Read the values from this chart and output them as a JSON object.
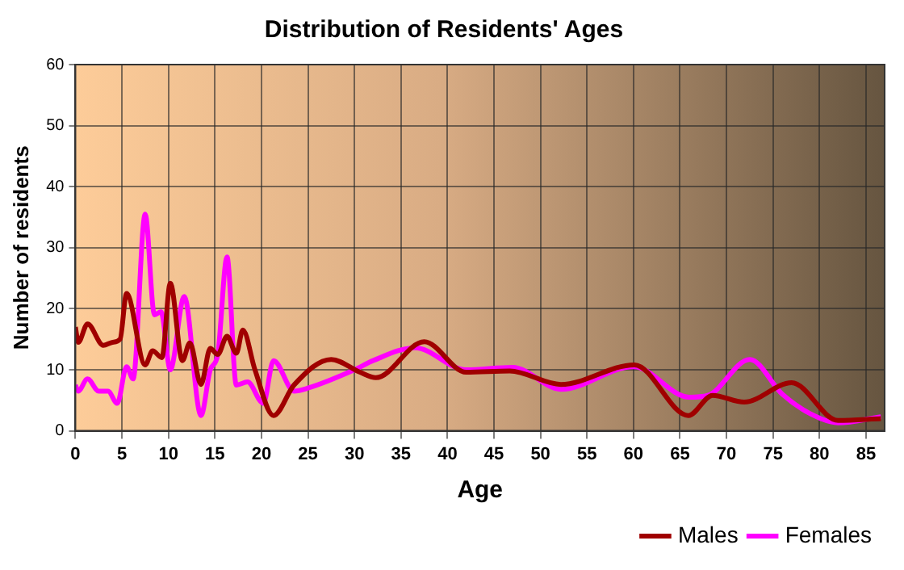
{
  "chart_data": {
    "type": "line",
    "title": "Distribution of Residents' Ages",
    "xlabel": "Age",
    "ylabel": "Number of residents",
    "xlim": [
      0,
      87
    ],
    "xticks": [
      0,
      5,
      10,
      15,
      20,
      25,
      30,
      35,
      40,
      45,
      50,
      55,
      60,
      65,
      70,
      75,
      80,
      85
    ],
    "ylim": [
      0,
      60
    ],
    "yticks": [
      0,
      10,
      20,
      30,
      40,
      50,
      60
    ],
    "grid": true,
    "legend": "bottom right",
    "marker": "none",
    "line_style": "solid",
    "series": [
      {
        "name": "Males",
        "color": "#a00000",
        "x": [
          0,
          0.3,
          1.3,
          3,
          4,
          4.8,
          5.5,
          7.5,
          8.3,
          9.3,
          10.2,
          11.5,
          12.3,
          13.5,
          14.5,
          15.3,
          16.3,
          17.3,
          18,
          19.3,
          21.3,
          23.5,
          27.5,
          30.6,
          32.3,
          37.5,
          42,
          46.7,
          52.2,
          60.1,
          65.9,
          68.5,
          71.9,
          77,
          82,
          86.6
        ],
        "values": [
          17,
          14.5,
          17.5,
          14,
          14.5,
          15,
          22.5,
          10.8,
          13.1,
          12,
          24.2,
          11.5,
          14.4,
          7.6,
          13.5,
          12.5,
          15.5,
          12.7,
          16.5,
          10,
          2.5,
          7.5,
          11.7,
          9.6,
          8.7,
          14.6,
          9.6,
          9.8,
          7.6,
          10.8,
          2.5,
          5.8,
          4.7,
          7.9,
          1.7,
          2
        ]
      },
      {
        "name": "Females",
        "color": "#ff00ff",
        "x": [
          0,
          0.3,
          1.3,
          2.5,
          3.5,
          4.5,
          5.5,
          6.2,
          7.5,
          8.5,
          9.2,
          10.2,
          11.7,
          13.5,
          14.5,
          15.3,
          16.3,
          17.3,
          18.5,
          20.2,
          21.3,
          23.5,
          25,
          30,
          32,
          36.5,
          42,
          47,
          52.2,
          60,
          66,
          68,
          72.5,
          76,
          79,
          82,
          86.6
        ],
        "values": [
          7.5,
          6.5,
          8.5,
          6.5,
          6.5,
          4.5,
          10.5,
          8.5,
          35.5,
          19,
          19.5,
          10,
          22,
          2.5,
          10,
          12.5,
          28.5,
          7.5,
          8,
          4.5,
          11.5,
          6.5,
          7,
          10,
          11.5,
          13.6,
          10,
          10.4,
          6.8,
          10.5,
          5.5,
          5.8,
          11.7,
          6,
          2.8,
          1.3,
          2.3
        ]
      }
    ]
  }
}
